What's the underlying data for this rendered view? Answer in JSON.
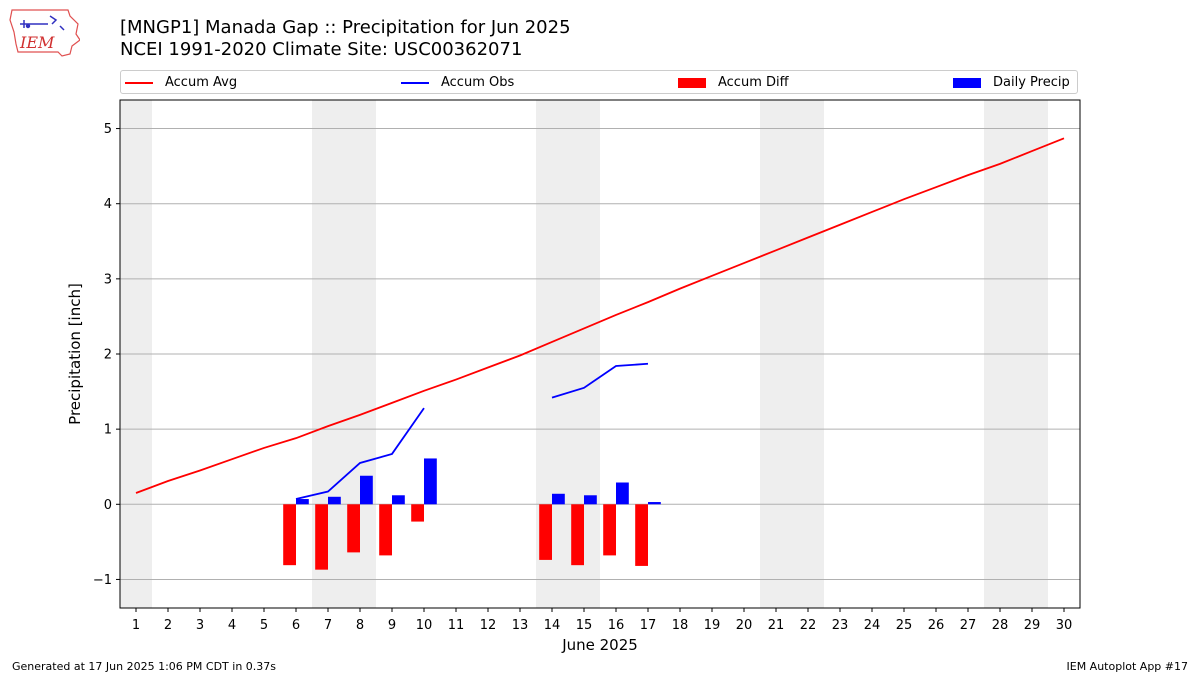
{
  "title_line1": "[MNGP1] Manada Gap :: Precipitation for Jun 2025",
  "title_line2": "NCEI 1991-2020 Climate Site: USC00362071",
  "logo_text": "IEM",
  "footer_left": "Generated at 17 Jun 2025 1:06 PM CDT in 0.37s",
  "footer_right": "IEM Autoplot App #17",
  "colors": {
    "accum_avg": "#ff0000",
    "accum_obs": "#0000ff",
    "accum_diff": "#ff0000",
    "daily_precip": "#0000ff",
    "weekend_band": "#eeeeee",
    "grid": "#b0b0b0"
  },
  "legend": [
    {
      "label": "Accum Avg",
      "kind": "line",
      "color": "#ff0000"
    },
    {
      "label": "Accum Obs",
      "kind": "line",
      "color": "#0000ff"
    },
    {
      "label": "Accum Diff",
      "kind": "box",
      "color": "#ff0000"
    },
    {
      "label": "Daily Precip",
      "kind": "box",
      "color": "#0000ff"
    }
  ],
  "chart_data": {
    "type": "bar",
    "xlabel": "June 2025",
    "ylabel": "Precipitation [inch]",
    "x": [
      1,
      2,
      3,
      4,
      5,
      6,
      7,
      8,
      9,
      10,
      11,
      12,
      13,
      14,
      15,
      16,
      17,
      18,
      19,
      20,
      21,
      22,
      23,
      24,
      25,
      26,
      27,
      28,
      29,
      30
    ],
    "xlim": [
      0.5,
      30.5
    ],
    "ylim": [
      -1.38,
      5.38
    ],
    "yticks": [
      -1,
      0,
      1,
      2,
      3,
      4,
      5
    ],
    "ytick_labels": [
      "−1",
      "0",
      "1",
      "2",
      "3",
      "4",
      "5"
    ],
    "grid": "horizontal",
    "weekend_bands": [
      [
        0.5,
        1.5
      ],
      [
        6.5,
        8.5
      ],
      [
        13.5,
        15.5
      ],
      [
        20.5,
        22.5
      ],
      [
        27.5,
        29.5
      ]
    ],
    "series": [
      {
        "name": "Accum Avg",
        "type": "line",
        "x": [
          1,
          2,
          3,
          4,
          5,
          6,
          7,
          8,
          9,
          10,
          11,
          12,
          13,
          14,
          15,
          16,
          17,
          18,
          19,
          20,
          21,
          22,
          23,
          24,
          25,
          26,
          27,
          28,
          29,
          30
        ],
        "values": [
          0.15,
          0.31,
          0.45,
          0.6,
          0.75,
          0.88,
          1.04,
          1.19,
          1.35,
          1.51,
          1.66,
          1.82,
          1.98,
          2.16,
          2.34,
          2.52,
          2.69,
          2.87,
          3.04,
          3.21,
          3.38,
          3.55,
          3.72,
          3.89,
          4.06,
          4.22,
          4.38,
          4.53,
          4.7,
          4.87
        ]
      },
      {
        "name": "Accum Obs",
        "type": "line",
        "segments": [
          {
            "x": [
              6,
              7,
              8,
              9,
              10
            ],
            "values": [
              0.07,
              0.17,
              0.55,
              0.67,
              1.28
            ]
          },
          {
            "x": [
              14,
              15,
              16,
              17
            ],
            "values": [
              1.42,
              1.55,
              1.84,
              1.87
            ]
          }
        ]
      },
      {
        "name": "Accum Diff",
        "type": "bar",
        "x": [
          6,
          7,
          8,
          9,
          10,
          14,
          15,
          16,
          17
        ],
        "values": [
          -0.81,
          -0.87,
          -0.64,
          -0.68,
          -0.23,
          -0.74,
          -0.81,
          -0.68,
          -0.82
        ]
      },
      {
        "name": "Daily Precip",
        "type": "bar",
        "x": [
          6,
          7,
          8,
          9,
          10,
          14,
          15,
          16,
          17
        ],
        "values": [
          0.07,
          0.1,
          0.38,
          0.12,
          0.61,
          0.14,
          0.12,
          0.29,
          0.03
        ]
      }
    ]
  }
}
